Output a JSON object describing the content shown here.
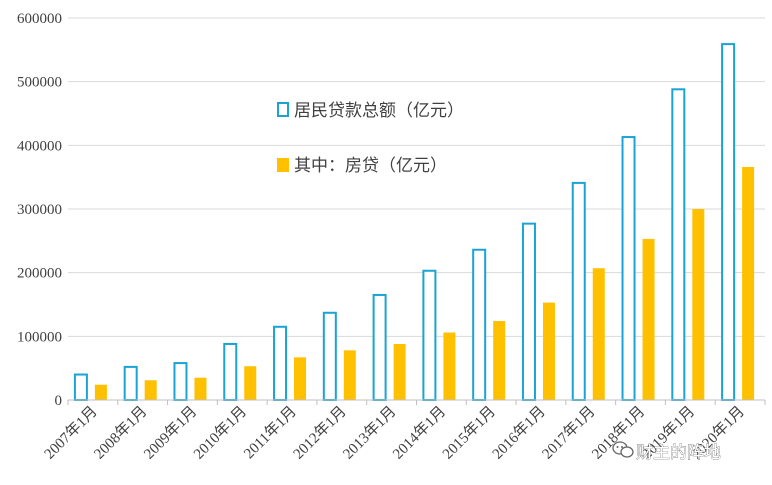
{
  "chart_data": {
    "type": "bar",
    "categories": [
      "2007年1月",
      "2008年1月",
      "2009年1月",
      "2010年1月",
      "2011年1月",
      "2012年1月",
      "2013年1月",
      "2014年1月",
      "2015年1月",
      "2016年1月",
      "2017年1月",
      "2018年1月",
      "2019年1月",
      "2020年1月"
    ],
    "series": [
      {
        "name": "居民贷款总额（亿元）",
        "style": "outline",
        "color": "#1aa3d4",
        "values": [
          40000,
          52000,
          58000,
          88000,
          115000,
          137000,
          165000,
          203000,
          236000,
          277000,
          341000,
          413000,
          488000,
          559000
        ]
      },
      {
        "name": "其中：房贷（亿元）",
        "style": "filled",
        "color": "#ffc000",
        "values": [
          24000,
          31000,
          35000,
          53000,
          67000,
          78000,
          88000,
          106000,
          124000,
          153000,
          207000,
          253000,
          300000,
          366000
        ]
      }
    ],
    "ylim": [
      0,
      600000
    ],
    "yticks": [
      0,
      100000,
      200000,
      300000,
      400000,
      500000,
      600000
    ],
    "grid": true,
    "legend_position": "inside-top-left",
    "gridline_color": "#d9d9d9"
  },
  "watermark": {
    "text": "财主的阵地",
    "icon": "wechat-icon"
  }
}
